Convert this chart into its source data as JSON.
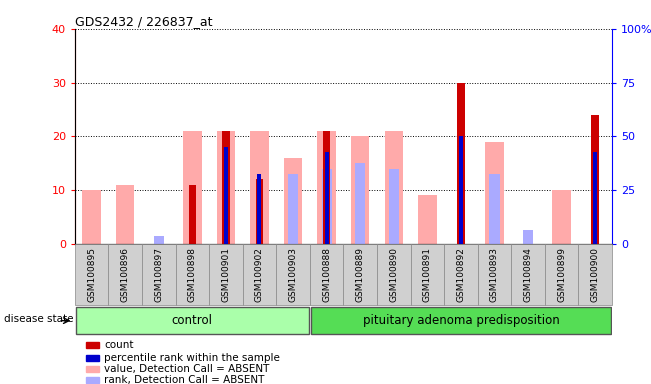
{
  "title": "GDS2432 / 226837_at",
  "samples": [
    "GSM100895",
    "GSM100896",
    "GSM100897",
    "GSM100898",
    "GSM100901",
    "GSM100902",
    "GSM100903",
    "GSM100888",
    "GSM100889",
    "GSM100890",
    "GSM100891",
    "GSM100892",
    "GSM100893",
    "GSM100894",
    "GSM100899",
    "GSM100900"
  ],
  "n_control": 7,
  "n_pituitary": 9,
  "count": [
    0,
    0,
    0,
    11,
    21,
    12,
    0,
    21,
    0,
    0,
    0,
    30,
    0,
    0,
    0,
    24
  ],
  "percentile_rank": [
    0,
    0,
    0,
    0,
    18,
    13,
    0,
    17,
    0,
    0,
    0,
    20,
    0,
    0,
    0,
    17
  ],
  "value_absent": [
    10,
    11,
    0,
    21,
    21,
    21,
    16,
    21,
    20,
    21,
    9,
    0,
    19,
    0,
    10,
    0
  ],
  "rank_absent": [
    0,
    0,
    1.5,
    0,
    0,
    0,
    13,
    14,
    15,
    14,
    0,
    0,
    13,
    2.5,
    0,
    0
  ],
  "left_ylim": [
    0,
    40
  ],
  "right_ylim": [
    0,
    100
  ],
  "left_yticks": [
    0,
    10,
    20,
    30,
    40
  ],
  "right_yticks": [
    0,
    25,
    50,
    75,
    100
  ],
  "right_yticklabels": [
    "0",
    "25",
    "50",
    "75",
    "100%"
  ],
  "color_count": "#cc0000",
  "color_percentile": "#0000cc",
  "color_value_absent": "#ffaaaa",
  "color_rank_absent": "#aaaaff",
  "color_control_bg": "#aaffaa",
  "color_pituitary_bg": "#55dd55",
  "color_xticklabel_bg": "#d0d0d0",
  "disease_state_label": "disease state",
  "group_labels": [
    "control",
    "pituitary adenoma predisposition"
  ],
  "legend_labels": [
    "count",
    "percentile rank within the sample",
    "value, Detection Call = ABSENT",
    "rank, Detection Call = ABSENT"
  ],
  "legend_colors": [
    "#cc0000",
    "#0000cc",
    "#ffaaaa",
    "#aaaaff"
  ]
}
